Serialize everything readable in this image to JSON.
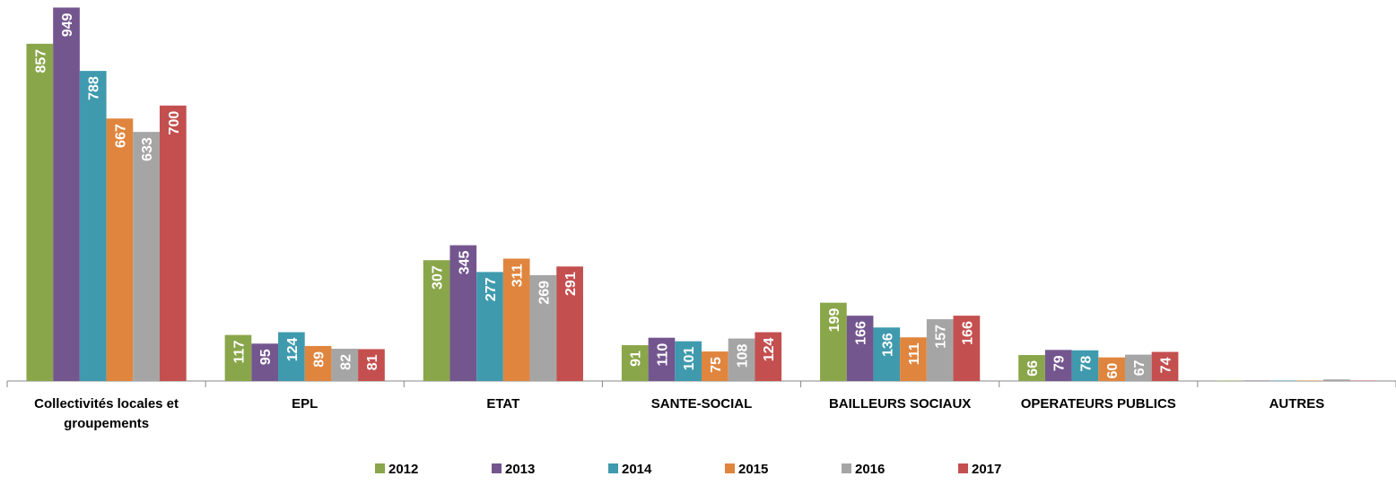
{
  "chart_data": {
    "type": "bar",
    "categories": [
      "Collectivités locales et groupements",
      "EPL",
      "ETAT",
      "SANTE-SOCIAL",
      "BAILLEURS SOCIAUX",
      "OPERATEURS PUBLICS",
      "AUTRES"
    ],
    "series": [
      {
        "name": "2012",
        "color": "#8aa64a",
        "values": [
          857,
          117,
          307,
          91,
          199,
          66,
          1
        ],
        "value_labels": [
          "857",
          "117",
          "307",
          "91",
          "199",
          "66",
          null
        ]
      },
      {
        "name": "2013",
        "color": "#74568f",
        "values": [
          949,
          95,
          345,
          110,
          166,
          79,
          1
        ],
        "value_labels": [
          "949",
          "95",
          "345",
          "110",
          "166",
          "79",
          null
        ]
      },
      {
        "name": "2014",
        "color": "#3f9aae",
        "values": [
          788,
          124,
          277,
          101,
          136,
          78,
          1
        ],
        "value_labels": [
          "788",
          "124",
          "277",
          "101",
          "136",
          "78",
          null
        ]
      },
      {
        "name": "2015",
        "color": "#e0853e",
        "values": [
          667,
          89,
          311,
          75,
          111,
          60,
          1
        ],
        "value_labels": [
          "667",
          "89",
          "311",
          "75",
          "111",
          "60",
          null
        ]
      },
      {
        "name": "2016",
        "color": "#a5a5a5",
        "values": [
          633,
          82,
          269,
          108,
          157,
          67,
          4
        ],
        "value_labels": [
          "633",
          "82",
          "269",
          "108",
          "157",
          "67",
          null
        ]
      },
      {
        "name": "2017",
        "color": "#c44f4f",
        "values": [
          700,
          81,
          291,
          124,
          166,
          74,
          1
        ],
        "value_labels": [
          "700",
          "81",
          "291",
          "124",
          "166",
          "74",
          null
        ]
      }
    ],
    "ylim": [
      0,
      950
    ],
    "legend": "bottom"
  }
}
